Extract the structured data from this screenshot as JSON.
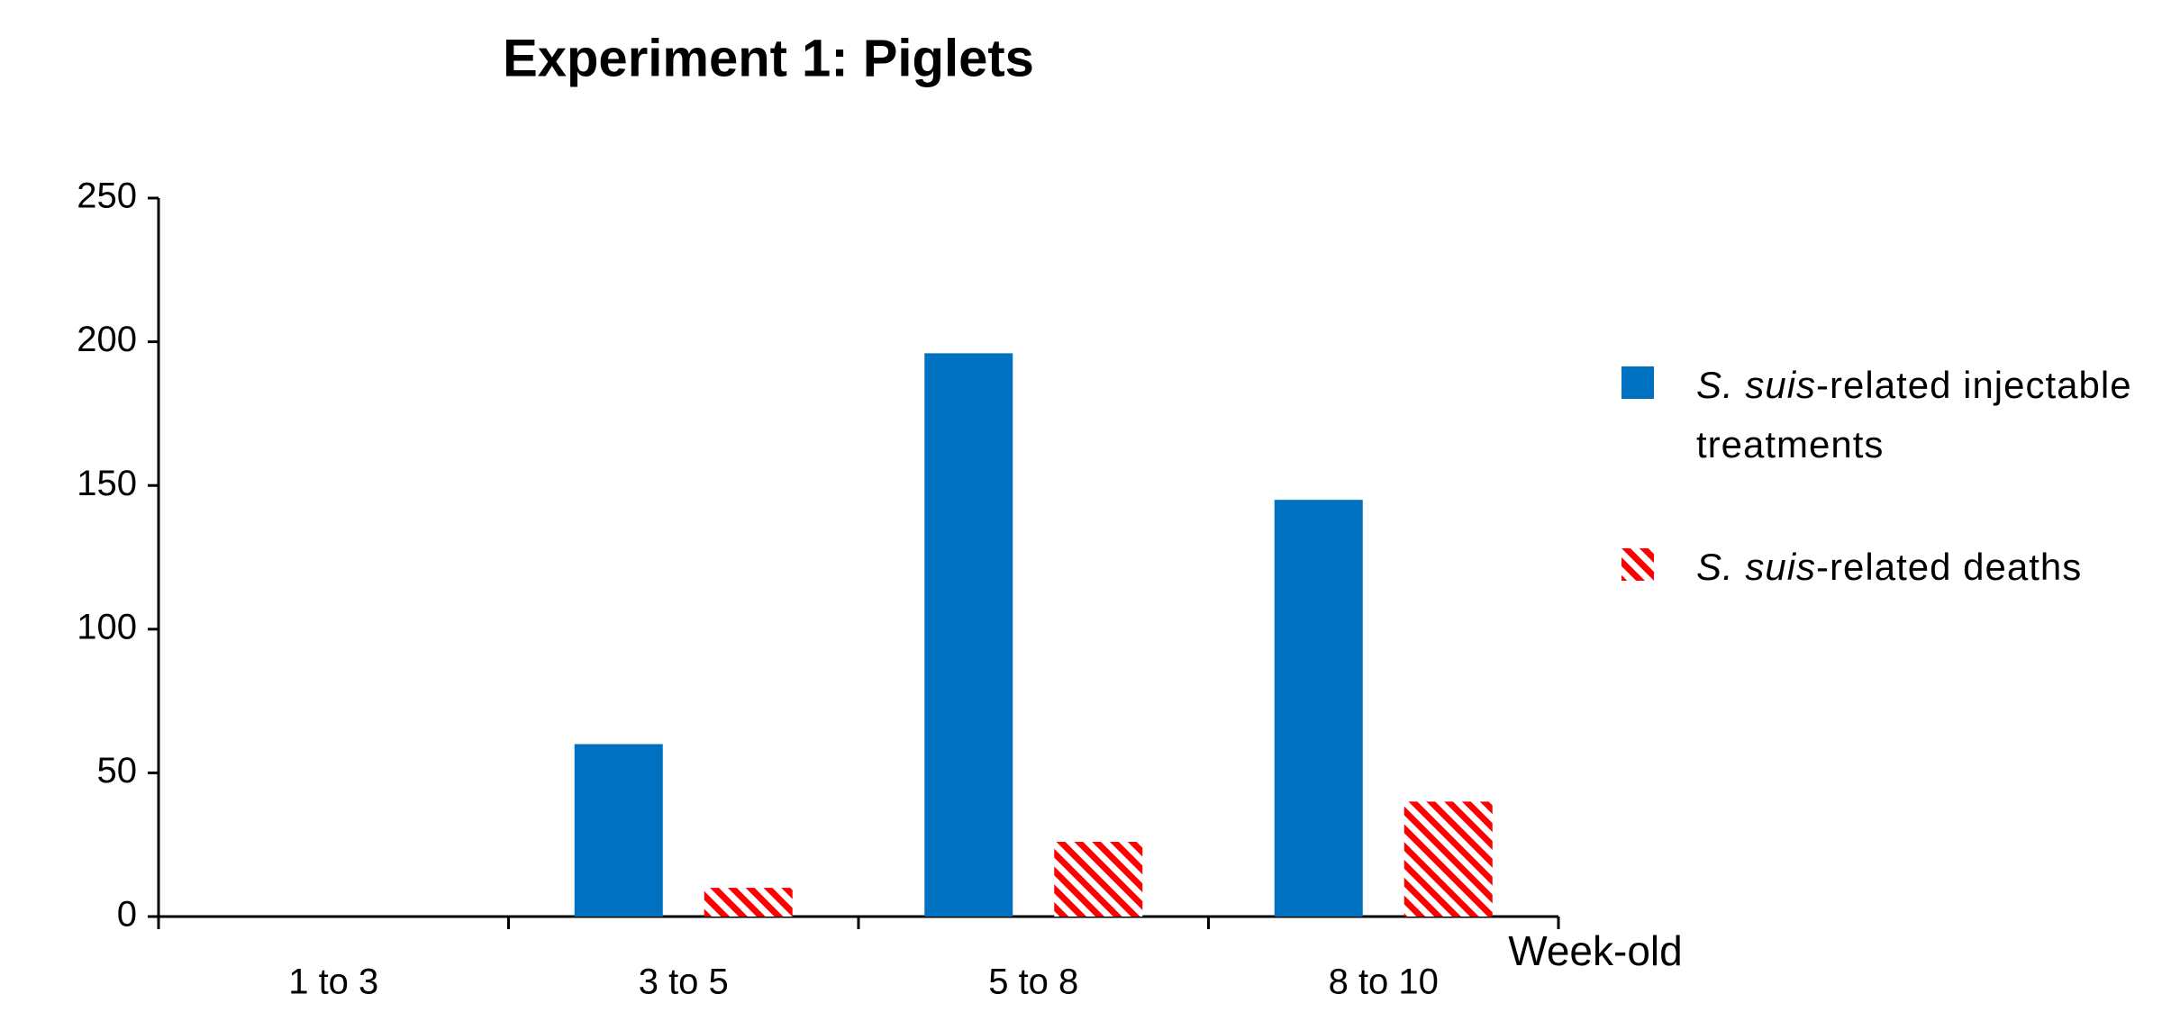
{
  "chart_data": {
    "type": "bar",
    "title": "Experiment 1: Piglets",
    "x_label": "Week-old",
    "categories": [
      "1 to 3",
      "3 to 5",
      "5 to 8",
      "8 to 10"
    ],
    "series": [
      {
        "name": "S. suis-related injectable treatments",
        "color": "#0070c0",
        "values": [
          0,
          60,
          196,
          145
        ]
      },
      {
        "name": "S. suis-related deaths",
        "color": "#ff0000",
        "pattern": "hatch",
        "values": [
          0,
          10,
          26,
          40
        ]
      }
    ],
    "ylim": [
      0,
      250
    ],
    "yticks": [
      0,
      50,
      100,
      150,
      200,
      250
    ],
    "grid": false,
    "legend": "right"
  }
}
